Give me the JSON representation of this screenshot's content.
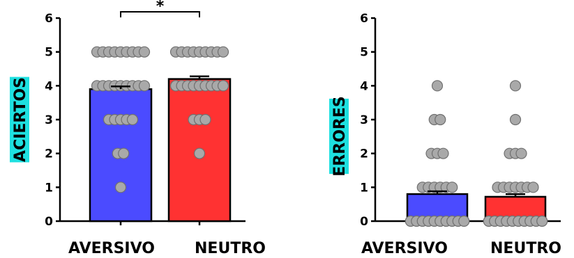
{
  "chart_data": [
    {
      "type": "bar",
      "ylabel": "ACIERTOS",
      "ylabel_bg": "#1ee0e0",
      "categories": [
        "AVERSIVO",
        "NEUTRO"
      ],
      "values": [
        3.9,
        4.2
      ],
      "errors": [
        0.08,
        0.08
      ],
      "bar_colors": [
        "#4b4bff",
        "#ff3232"
      ],
      "ylim": [
        0,
        6
      ],
      "yticks": [
        "0",
        "1",
        "2",
        "3",
        "4",
        "5",
        "6"
      ],
      "significance": "*",
      "points": [
        [
          5,
          5,
          5,
          5,
          5,
          5,
          5,
          5,
          5,
          4,
          4,
          4,
          4,
          4,
          4,
          4,
          4,
          4,
          3,
          3,
          3,
          3,
          3,
          2,
          2,
          1
        ],
        [
          5,
          5,
          5,
          5,
          5,
          5,
          5,
          5,
          5,
          4,
          4,
          4,
          4,
          4,
          4,
          4,
          4,
          4,
          3,
          3,
          3,
          2
        ]
      ]
    },
    {
      "type": "bar",
      "ylabel": "ERRORES",
      "ylabel_bg": "#1ee0e0",
      "categories": [
        "AVERSIVO",
        "NEUTRO"
      ],
      "values": [
        0.8,
        0.72
      ],
      "errors": [
        0.08,
        0.08
      ],
      "bar_colors": [
        "#4b4bff",
        "#ff3232"
      ],
      "ylim": [
        0,
        6
      ],
      "yticks": [
        "0",
        "1",
        "2",
        "3",
        "4",
        "5",
        "6"
      ],
      "points": [
        [
          4,
          3,
          3,
          2,
          2,
          2,
          1,
          1,
          1,
          1,
          1,
          1,
          0,
          0,
          0,
          0,
          0,
          0,
          0,
          0,
          0,
          0
        ],
        [
          4,
          3,
          2,
          2,
          2,
          1,
          1,
          1,
          1,
          1,
          1,
          1,
          0,
          0,
          0,
          0,
          0,
          0,
          0,
          0,
          0,
          0
        ]
      ]
    }
  ]
}
